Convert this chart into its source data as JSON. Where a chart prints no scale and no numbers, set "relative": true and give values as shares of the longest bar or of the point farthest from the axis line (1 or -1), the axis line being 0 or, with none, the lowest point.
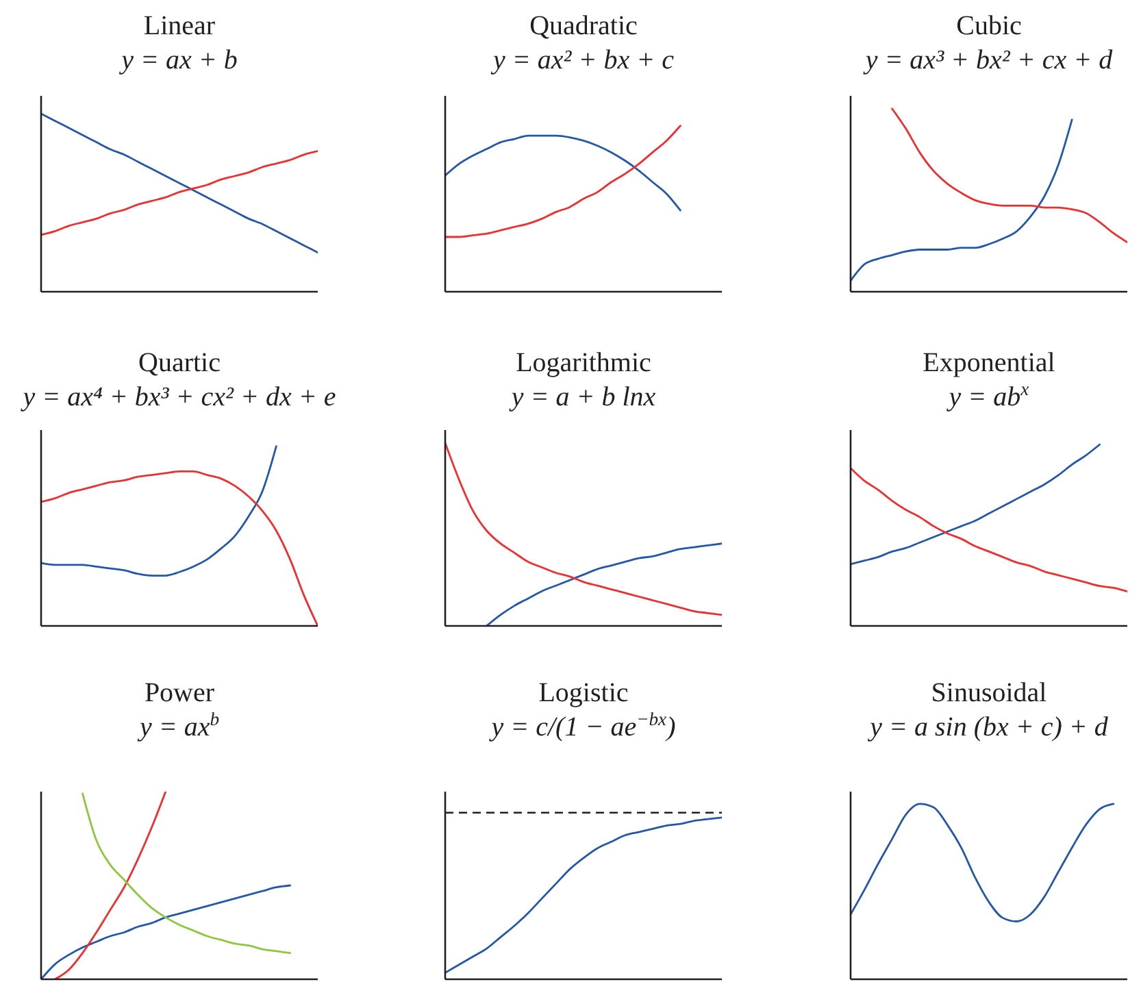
{
  "chart_data": [
    {
      "type": "line",
      "relative": true,
      "title": "Linear",
      "subtitle": "y = ax + b",
      "categories": [
        null,
        null,
        null,
        null,
        null,
        null,
        null,
        null,
        null,
        null,
        null,
        null,
        null,
        null,
        null,
        null,
        null,
        null,
        null,
        null,
        null
      ],
      "series": [
        {
          "color": "#2457a7",
          "values": [
            1,
            0.96,
            0.92,
            0.88,
            0.84,
            0.8,
            0.77,
            0.73,
            0.69,
            0.65,
            0.61,
            0.57,
            0.53,
            0.49,
            0.45,
            0.41,
            0.38,
            0.34,
            0.3,
            0.26,
            0.22
          ]
        },
        {
          "color": "#ec2f2f",
          "values": [
            0.32,
            0.34,
            0.37,
            0.39,
            0.41,
            0.44,
            0.46,
            0.49,
            0.51,
            0.53,
            0.56,
            0.58,
            0.6,
            0.63,
            0.65,
            0.67,
            0.7,
            0.72,
            0.74,
            0.77,
            0.79
          ]
        }
      ]
    },
    {
      "type": "line",
      "relative": true,
      "title": "Quadratic",
      "subtitle": "y = ax² + bx + c",
      "categories": [
        null,
        null,
        null,
        null,
        null,
        null,
        null,
        null,
        null,
        null,
        null,
        null,
        null,
        null,
        null,
        null,
        null,
        null,
        null,
        null,
        null
      ],
      "series": [
        {
          "color": "#2457a7",
          "values": [
            0.7,
            0.77,
            0.82,
            0.86,
            0.9,
            0.92,
            0.94,
            0.94,
            0.94,
            0.93,
            0.91,
            0.88,
            0.84,
            0.79,
            0.73,
            0.66,
            0.59,
            0.49,
            null,
            null,
            null
          ]
        },
        {
          "color": "#ec2f2f",
          "values": [
            0.33,
            0.33,
            0.34,
            0.35,
            0.37,
            0.39,
            0.41,
            0.44,
            0.48,
            0.51,
            0.56,
            0.6,
            0.66,
            0.71,
            0.77,
            0.84,
            0.91,
            1,
            null,
            null,
            null
          ]
        }
      ]
    },
    {
      "type": "line",
      "relative": true,
      "title": "Cubic",
      "subtitle": "y = ax³ + bx² + cx + d",
      "categories": [
        null,
        null,
        null,
        null,
        null,
        null,
        null,
        null,
        null,
        null,
        null,
        null,
        null,
        null,
        null,
        null,
        null,
        null,
        null,
        null,
        null
      ],
      "series": [
        {
          "color": "#2457a7",
          "values": [
            0.06,
            0.15,
            0.18,
            0.2,
            0.22,
            0.23,
            0.23,
            0.23,
            0.24,
            0.24,
            0.26,
            0.29,
            0.33,
            0.41,
            0.52,
            0.69,
            0.94,
            null,
            null,
            null,
            null
          ]
        },
        {
          "color": "#ec2f2f",
          "values": [
            null,
            null,
            null,
            1,
            0.89,
            0.76,
            0.66,
            0.59,
            0.54,
            0.5,
            0.48,
            0.47,
            0.47,
            0.47,
            0.46,
            0.46,
            0.45,
            0.43,
            0.38,
            0.32,
            0.27
          ]
        }
      ]
    },
    {
      "type": "line",
      "relative": true,
      "title": "Quartic",
      "subtitle": "y = ax⁴ + bx³ + cx² + dx + e",
      "categories": [
        null,
        null,
        null,
        null,
        null,
        null,
        null,
        null,
        null,
        null,
        null,
        null,
        null,
        null,
        null,
        null,
        null,
        null,
        null,
        null,
        null
      ],
      "series": [
        {
          "color": "#2457a7",
          "values": [
            0.35,
            0.34,
            0.34,
            0.34,
            0.33,
            0.32,
            0.31,
            0.29,
            0.28,
            0.28,
            0.3,
            0.33,
            0.37,
            0.43,
            0.5,
            0.61,
            0.75,
            1,
            null,
            null,
            null
          ]
        },
        {
          "color": "#ec2f2f",
          "values": [
            0.69,
            0.71,
            0.74,
            0.76,
            0.78,
            0.8,
            0.81,
            0.83,
            0.84,
            0.85,
            0.86,
            0.86,
            0.84,
            0.82,
            0.78,
            0.72,
            0.64,
            0.53,
            0.37,
            0.17,
            0
          ]
        }
      ]
    },
    {
      "type": "line",
      "relative": true,
      "title": "Logarithmic",
      "subtitle": "y = a + b lnx",
      "categories": [
        null,
        null,
        null,
        null,
        null,
        null,
        null,
        null,
        null,
        null,
        null,
        null,
        null,
        null,
        null,
        null,
        null,
        null,
        null,
        null,
        null
      ],
      "series": [
        {
          "color": "#2457a7",
          "values": [
            null,
            null,
            null,
            0,
            0.06,
            0.11,
            0.15,
            0.19,
            0.22,
            0.25,
            0.28,
            0.31,
            0.33,
            0.35,
            0.37,
            0.38,
            0.4,
            0.42,
            0.43,
            0.44,
            0.45
          ]
        },
        {
          "color": "#ec2f2f",
          "values": [
            1,
            0.8,
            0.63,
            0.52,
            0.45,
            0.4,
            0.35,
            0.32,
            0.29,
            0.27,
            0.24,
            0.22,
            0.2,
            0.18,
            0.16,
            0.14,
            0.12,
            0.1,
            0.08,
            0.07,
            0.06
          ]
        }
      ]
    },
    {
      "type": "line",
      "relative": true,
      "title": "Exponential",
      "subtitle": "y = ab$^{x}$",
      "categories": [
        null,
        null,
        null,
        null,
        null,
        null,
        null,
        null,
        null,
        null,
        null,
        null,
        null,
        null,
        null,
        null,
        null,
        null,
        null,
        null,
        null
      ],
      "series": [
        {
          "color": "#2457a7",
          "values": [
            0.34,
            0.36,
            0.38,
            0.41,
            0.43,
            0.46,
            0.49,
            0.52,
            0.55,
            0.58,
            0.62,
            0.66,
            0.7,
            0.74,
            0.78,
            0.83,
            0.89,
            0.94,
            1,
            null,
            null
          ]
        },
        {
          "color": "#ec2f2f",
          "values": [
            0.87,
            0.8,
            0.75,
            0.69,
            0.64,
            0.6,
            0.55,
            0.51,
            0.48,
            0.44,
            0.41,
            0.38,
            0.35,
            0.33,
            0.3,
            0.28,
            0.26,
            0.24,
            0.22,
            0.21,
            0.19
          ]
        }
      ]
    },
    {
      "type": "line",
      "relative": true,
      "title": "Power",
      "subtitle": "y = ax$^{b}$",
      "categories": [
        null,
        null,
        null,
        null,
        null,
        null,
        null,
        null,
        null,
        null,
        null,
        null,
        null,
        null,
        null,
        null,
        null,
        null,
        null,
        null,
        null
      ],
      "series": [
        {
          "color": "#2457a7",
          "values": [
            0,
            0.08,
            0.13,
            0.17,
            0.2,
            0.23,
            0.25,
            0.28,
            0.3,
            0.33,
            0.35,
            0.37,
            0.39,
            0.41,
            0.43,
            0.45,
            0.47,
            0.49,
            0.5,
            null,
            null
          ]
        },
        {
          "color": "#ec2f2f",
          "values": [
            null,
            0,
            0.05,
            0.14,
            0.25,
            0.37,
            0.49,
            0.64,
            0.81,
            1,
            null,
            null,
            null,
            null,
            null,
            null,
            null,
            null,
            null,
            null,
            null
          ]
        },
        {
          "color": "#8dc63f",
          "values": [
            null,
            null,
            null,
            0.99,
            0.74,
            0.61,
            0.53,
            0.45,
            0.38,
            0.33,
            0.29,
            0.26,
            0.23,
            0.21,
            0.19,
            0.18,
            0.16,
            0.15,
            0.14,
            null,
            null
          ]
        }
      ]
    },
    {
      "type": "line",
      "relative": true,
      "title": "Logistic",
      "subtitle": "y = c/(1 − ae$^{−bx}$)",
      "categories": [
        null,
        null,
        null,
        null,
        null,
        null,
        null,
        null,
        null,
        null,
        null,
        null,
        null,
        null,
        null,
        null,
        null,
        null,
        null,
        null,
        null
      ],
      "series": [
        {
          "color": "#2457a7",
          "values": [
            0.04,
            0.09,
            0.14,
            0.19,
            0.26,
            0.33,
            0.41,
            0.5,
            0.59,
            0.68,
            0.75,
            0.81,
            0.85,
            0.89,
            0.91,
            0.93,
            0.95,
            0.96,
            0.98,
            0.99,
            1
          ]
        }
      ],
      "ref_lines": [
        {
          "axis": "y",
          "value": 1.03,
          "color": "#231f20",
          "line_style": "dashed"
        }
      ]
    },
    {
      "type": "line",
      "relative": true,
      "title": "Sinusoidal",
      "subtitle": "y = a sin (bx + c) + d",
      "categories": [
        null,
        null,
        null,
        null,
        null,
        null,
        null,
        null,
        null,
        null,
        null,
        null,
        null,
        null,
        null,
        null,
        null,
        null,
        null,
        null,
        null
      ],
      "series": [
        {
          "color": "#2457a7",
          "values": [
            0.37,
            0.51,
            0.66,
            0.8,
            0.94,
            1,
            0.98,
            0.88,
            0.75,
            0.58,
            0.44,
            0.35,
            0.33,
            0.37,
            0.47,
            0.61,
            0.75,
            0.88,
            0.97,
            1,
            null
          ]
        }
      ]
    }
  ]
}
